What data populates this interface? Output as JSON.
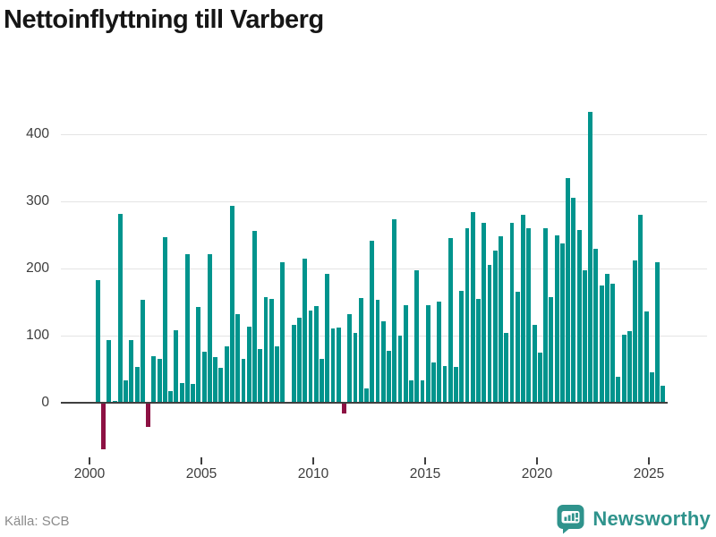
{
  "title": "Nettoinflyttning till Varberg",
  "source": "Källa: SCB",
  "brand": {
    "name": "Newsworthy",
    "icon": "bar-chart-speech-bubble-icon"
  },
  "colors": {
    "positive_bar": "#00948d",
    "negative_bar": "#8d1143",
    "gridline": "#e4e4e4",
    "zero_line": "#3f3f3f",
    "axis_text": "#3d3d3d",
    "title_text": "#161616",
    "source_text": "#8b8b8b",
    "brand_teal": "#2f938c"
  },
  "chart_data": {
    "type": "bar",
    "title": "Nettoinflyttning till Varberg",
    "xlabel": "",
    "ylabel": "",
    "legend": null,
    "grid": "horizontal",
    "ylim": [
      -75,
      447
    ],
    "yticks": [
      0,
      100,
      200,
      300,
      400
    ],
    "xticks": [
      2000,
      2005,
      2010,
      2015,
      2020,
      2025
    ],
    "x_unit": "quarter",
    "quarters": [
      "2000 Q1",
      "2000 Q2",
      "2000 Q3",
      "2000 Q4",
      "2001 Q1",
      "2001 Q2",
      "2001 Q3",
      "2001 Q4",
      "2002 Q1",
      "2002 Q2",
      "2002 Q3",
      "2002 Q4",
      "2003 Q1",
      "2003 Q2",
      "2003 Q3",
      "2003 Q4",
      "2004 Q1",
      "2004 Q2",
      "2004 Q3",
      "2004 Q4",
      "2005 Q1",
      "2005 Q2",
      "2005 Q3",
      "2005 Q4",
      "2006 Q1",
      "2006 Q2",
      "2006 Q3",
      "2006 Q4",
      "2007 Q1",
      "2007 Q2",
      "2007 Q3",
      "2007 Q4",
      "2008 Q1",
      "2008 Q2",
      "2008 Q3",
      "2008 Q4",
      "2009 Q1",
      "2009 Q2",
      "2009 Q3",
      "2009 Q4",
      "2010 Q1",
      "2010 Q2",
      "2010 Q3",
      "2010 Q4",
      "2011 Q1",
      "2011 Q2",
      "2011 Q3",
      "2011 Q4",
      "2012 Q1",
      "2012 Q2",
      "2012 Q3",
      "2012 Q4",
      "2013 Q1",
      "2013 Q2",
      "2013 Q3",
      "2013 Q4",
      "2014 Q1",
      "2014 Q2",
      "2014 Q3",
      "2014 Q4",
      "2015 Q1",
      "2015 Q2",
      "2015 Q3",
      "2015 Q4",
      "2016 Q1",
      "2016 Q2",
      "2016 Q3",
      "2016 Q4",
      "2017 Q1",
      "2017 Q2",
      "2017 Q3",
      "2017 Q4",
      "2018 Q1",
      "2018 Q2",
      "2018 Q3",
      "2018 Q4",
      "2019 Q1",
      "2019 Q2",
      "2019 Q3",
      "2019 Q4",
      "2020 Q1",
      "2020 Q2",
      "2020 Q3",
      "2020 Q4",
      "2021 Q1",
      "2021 Q2",
      "2021 Q3",
      "2021 Q4",
      "2022 Q1",
      "2022 Q2",
      "2022 Q3",
      "2022 Q4",
      "2023 Q1",
      "2023 Q2",
      "2023 Q3",
      "2023 Q4",
      "2024 Q1",
      "2024 Q2",
      "2024 Q3",
      "2024 Q4",
      "2025 Q1",
      "2025 Q2",
      "2025 Q3"
    ],
    "values": [
      0,
      183,
      -68,
      94,
      3,
      282,
      33,
      93,
      53,
      153,
      -35,
      70,
      65,
      247,
      18,
      108,
      29,
      222,
      28,
      143,
      76,
      222,
      68,
      52,
      84,
      293,
      132,
      65,
      114,
      256,
      80,
      157,
      155,
      84,
      210,
      2,
      116,
      127,
      215,
      138,
      144,
      66,
      192,
      111,
      112,
      -15,
      132,
      104,
      156,
      22,
      242,
      153,
      122,
      77,
      274,
      100,
      145,
      34,
      198,
      33,
      145,
      60,
      151,
      55,
      245,
      54,
      167,
      260,
      284,
      155,
      268,
      206,
      227,
      248,
      104,
      268,
      165,
      280,
      260,
      116,
      75,
      260,
      157,
      250,
      238,
      335,
      305,
      257,
      198,
      433,
      230,
      175,
      192,
      177,
      39,
      102,
      107,
      212,
      280,
      136,
      45,
      209,
      25
    ]
  }
}
